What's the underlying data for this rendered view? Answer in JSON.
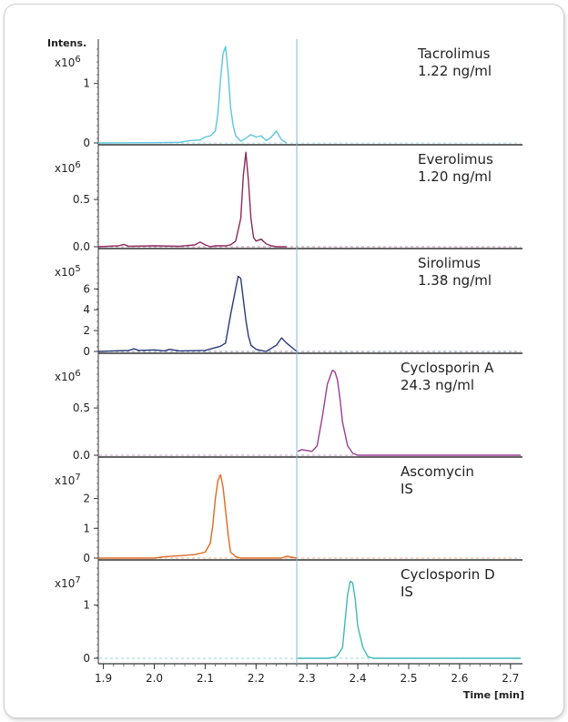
{
  "chart_data": {
    "type": "line",
    "y_title": "Intens.",
    "x_title": "Time [min]",
    "x_ticks": [
      1.9,
      2.0,
      2.1,
      2.2,
      2.3,
      2.4,
      2.5,
      2.6,
      2.7
    ],
    "xlim": [
      1.89,
      2.72
    ],
    "marker_x": 2.28,
    "panels": [
      {
        "name": "Tacrolimus",
        "amount": "1.22 ng/ml",
        "color": "#5bc6dc",
        "multiplier": "x10",
        "exponent": "6",
        "ylim": [
          0,
          1.7
        ],
        "y_ticks": [
          {
            "v": 0,
            "label": "0"
          },
          {
            "v": 1,
            "label": "1"
          }
        ],
        "x": [
          1.89,
          2.0,
          2.05,
          2.07,
          2.09,
          2.1,
          2.11,
          2.12,
          2.125,
          2.13,
          2.135,
          2.14,
          2.145,
          2.15,
          2.155,
          2.16,
          2.17,
          2.18,
          2.19,
          2.2,
          2.21,
          2.22,
          2.23,
          2.24,
          2.25,
          2.26
        ],
        "y": [
          0,
          0.005,
          0.01,
          0.04,
          0.05,
          0.1,
          0.12,
          0.2,
          0.5,
          1.05,
          1.5,
          1.62,
          1.2,
          0.6,
          0.3,
          0.12,
          0.03,
          0.08,
          0.14,
          0.1,
          0.12,
          0.04,
          0.1,
          0.2,
          0.05,
          0.0
        ]
      },
      {
        "name": "Everolimus",
        "amount": "1.20 ng/ml",
        "color": "#8b2a5b",
        "multiplier": "x10",
        "exponent": "6",
        "ylim": [
          0,
          1.05
        ],
        "y_ticks": [
          {
            "v": 0,
            "label": "0.0"
          },
          {
            "v": 0.5,
            "label": "0.5"
          }
        ],
        "x": [
          1.89,
          1.93,
          1.94,
          1.95,
          2.0,
          2.05,
          2.08,
          2.09,
          2.1,
          2.11,
          2.12,
          2.14,
          2.15,
          2.16,
          2.17,
          2.175,
          2.18,
          2.185,
          2.19,
          2.195,
          2.2,
          2.21,
          2.22,
          2.23,
          2.24,
          2.26
        ],
        "y": [
          0,
          0.01,
          0.025,
          0.005,
          0.01,
          0.005,
          0.02,
          0.05,
          0.02,
          0.0,
          0.01,
          0.01,
          0.02,
          0.06,
          0.3,
          0.75,
          1.0,
          0.7,
          0.3,
          0.1,
          0.06,
          0.08,
          0.03,
          0.01,
          0.0,
          0.0
        ]
      },
      {
        "name": "Sirolimus",
        "amount": "1.38 ng/ml",
        "color": "#2a3a78",
        "multiplier": "x10",
        "exponent": "5",
        "ylim": [
          0,
          9.6
        ],
        "y_ticks": [
          {
            "v": 0,
            "label": "0"
          },
          {
            "v": 2,
            "label": "2"
          },
          {
            "v": 4,
            "label": "4"
          },
          {
            "v": 6,
            "label": "6"
          }
        ],
        "x": [
          1.89,
          1.95,
          1.96,
          1.97,
          2.0,
          2.02,
          2.03,
          2.05,
          2.1,
          2.13,
          2.14,
          2.15,
          2.16,
          2.165,
          2.17,
          2.175,
          2.18,
          2.185,
          2.19,
          2.2,
          2.21,
          2.22,
          2.24,
          2.25,
          2.26,
          2.28
        ],
        "y": [
          0,
          0.1,
          0.25,
          0.1,
          0.15,
          0.05,
          0.2,
          0.05,
          0.1,
          0.5,
          0.8,
          3.5,
          6.0,
          7.2,
          7.0,
          5.0,
          3.0,
          1.5,
          0.6,
          0.2,
          0.1,
          0.0,
          0.6,
          1.3,
          0.8,
          0.0
        ]
      },
      {
        "name": "Cyclosporin A",
        "amount": "24.3 ng/ml",
        "color": "#9c3d96",
        "multiplier": "x10",
        "exponent": "6",
        "ylim": [
          0,
          1.05
        ],
        "y_ticks": [
          {
            "v": 0,
            "label": "0.0"
          },
          {
            "v": 0.5,
            "label": "0.5"
          }
        ],
        "x": [
          2.282,
          2.29,
          2.3,
          2.31,
          2.32,
          2.33,
          2.34,
          2.35,
          2.355,
          2.36,
          2.365,
          2.37,
          2.38,
          2.39,
          2.4,
          2.45,
          2.55,
          2.65,
          2.72
        ],
        "y": [
          0.04,
          0.06,
          0.05,
          0.04,
          0.1,
          0.4,
          0.75,
          0.9,
          0.88,
          0.8,
          0.6,
          0.35,
          0.1,
          0.02,
          0.0,
          0.0,
          0.0,
          0.0,
          0.0
        ]
      },
      {
        "name": "Ascomycin",
        "amount": "IS",
        "color": "#e06a22",
        "multiplier": "x10",
        "exponent": "7",
        "ylim": [
          0,
          3.3
        ],
        "y_ticks": [
          {
            "v": 0,
            "label": "0"
          },
          {
            "v": 1,
            "label": "1"
          },
          {
            "v": 2,
            "label": "2"
          }
        ],
        "x": [
          1.89,
          2.0,
          2.02,
          2.05,
          2.08,
          2.1,
          2.11,
          2.115,
          2.12,
          2.125,
          2.13,
          2.135,
          2.14,
          2.145,
          2.15,
          2.16,
          2.17,
          2.25,
          2.26,
          2.27,
          2.28
        ],
        "y": [
          0,
          0.0,
          0.05,
          0.08,
          0.12,
          0.2,
          0.5,
          1.1,
          2.0,
          2.6,
          2.8,
          2.4,
          1.6,
          0.8,
          0.2,
          0.05,
          0.0,
          0.0,
          0.06,
          0.03,
          0.0
        ]
      },
      {
        "name": "Cyclosporin D",
        "amount": "IS",
        "color": "#3fb8b8",
        "multiplier": "x10",
        "exponent": "7",
        "ylim": [
          0,
          1.8
        ],
        "y_ticks": [
          {
            "v": 0,
            "label": "0"
          },
          {
            "v": 1,
            "label": "1"
          }
        ],
        "x": [
          2.282,
          2.3,
          2.34,
          2.355,
          2.36,
          2.37,
          2.375,
          2.38,
          2.385,
          2.39,
          2.395,
          2.4,
          2.41,
          2.42,
          2.43,
          2.5,
          2.6,
          2.72
        ],
        "y": [
          0,
          0,
          0,
          0.02,
          0.05,
          0.2,
          0.7,
          1.2,
          1.45,
          1.42,
          1.1,
          0.6,
          0.2,
          0.03,
          0.0,
          0.0,
          0.0,
          0.0
        ]
      }
    ]
  }
}
